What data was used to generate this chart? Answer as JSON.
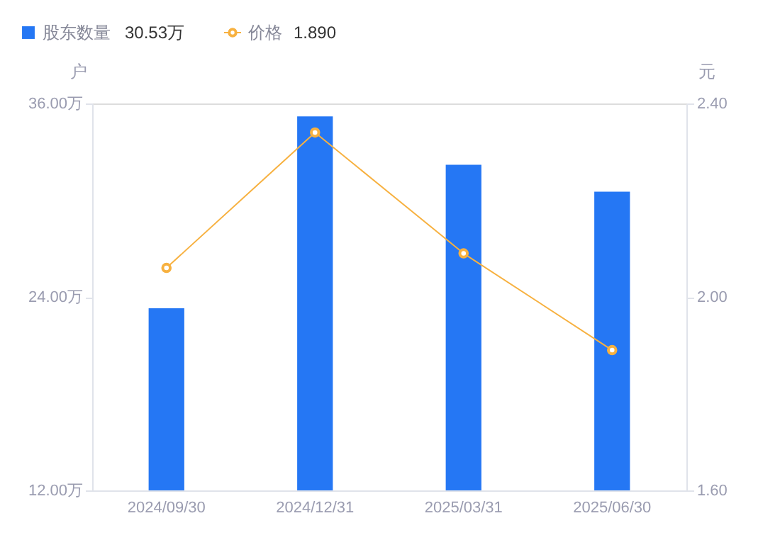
{
  "chart_data": {
    "type": "bar",
    "categories": [
      "2024/09/30",
      "2024/12/31",
      "2025/03/31",
      "2025/06/30"
    ],
    "series": [
      {
        "name": "股东数量",
        "color": "#2577f4",
        "values": [
          23.3,
          35.2,
          32.2,
          30.53
        ]
      },
      {
        "name": "价格",
        "type": "line",
        "axis": "y2",
        "color": "#f7b140",
        "marker": "circle",
        "values": [
          2.06,
          2.34,
          2.09,
          1.89
        ]
      }
    ],
    "annotations": [
      "30.53万",
      "1.890"
    ],
    "ylabel": "户",
    "y2label": "元",
    "ylim": [
      12,
      36
    ],
    "yticks": [
      {
        "value": 12,
        "label": "12.00万"
      },
      {
        "value": 24,
        "label": "24.00万"
      },
      {
        "value": 36,
        "label": "36.00万"
      }
    ],
    "y2lim": [
      1.6,
      2.4
    ],
    "y2ticks": [
      {
        "value": 1.6,
        "label": "1.60"
      },
      {
        "value": 2.0,
        "label": "2.00"
      },
      {
        "value": 2.4,
        "label": "2.40"
      }
    ],
    "grid": false,
    "legend": "top left"
  }
}
